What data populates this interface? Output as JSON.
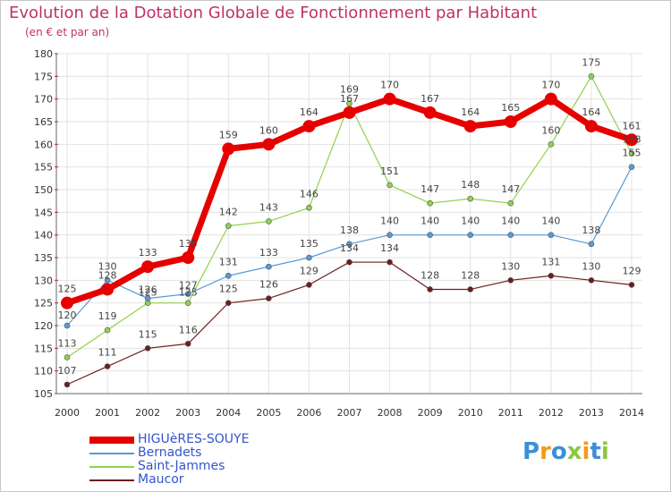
{
  "chart_data": {
    "type": "line",
    "title": "Evolution de la Dotation Globale de Fonctionnement par Habitant",
    "subtitle": "(en € et par an)",
    "xlabel": "",
    "ylabel": "",
    "x": [
      2000,
      2001,
      2002,
      2003,
      2004,
      2005,
      2006,
      2007,
      2008,
      2009,
      2010,
      2011,
      2012,
      2013,
      2014
    ],
    "ylim": [
      105,
      180
    ],
    "yticks": [
      105,
      110,
      115,
      120,
      125,
      130,
      135,
      140,
      145,
      150,
      155,
      160,
      165,
      170,
      175,
      180
    ],
    "grid": true,
    "legend_position": "bottom-left",
    "series": [
      {
        "name": "HIGUèRES-SOUYE",
        "color": "#e60000",
        "values": [
          125,
          128,
          133,
          135,
          159,
          160,
          164,
          167,
          170,
          167,
          164,
          165,
          170,
          164,
          161
        ]
      },
      {
        "name": "Bernadets",
        "color": "#5a9ad5",
        "values": [
          120,
          130,
          126,
          127,
          131,
          133,
          135,
          138,
          140,
          140,
          140,
          140,
          140,
          138,
          155
        ]
      },
      {
        "name": "Saint-Jammes",
        "color": "#8fd14f",
        "values": [
          113,
          119,
          125,
          125,
          142,
          143,
          146,
          169,
          151,
          147,
          148,
          147,
          160,
          175,
          158
        ]
      },
      {
        "name": "Maucor",
        "color": "#6b1e1e",
        "values": [
          107,
          111,
          115,
          116,
          125,
          126,
          129,
          134,
          134,
          128,
          128,
          130,
          131,
          130,
          129
        ]
      }
    ]
  },
  "logo": {
    "text": "Proxiti",
    "colors": [
      "#3a8fd8",
      "#f29a1c",
      "#3a8fd8",
      "#8cc63f",
      "#f29a1c",
      "#3a8fd8",
      "#8cc63f"
    ]
  }
}
